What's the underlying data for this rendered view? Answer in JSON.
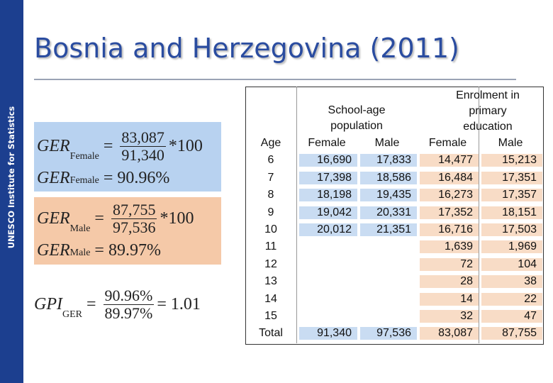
{
  "sidebar": "UNESCO Institute for Statistics",
  "title": "Bosnia and Herzegovina (2011)",
  "formulas": [
    {
      "lhs": "GER",
      "sub": "Female",
      "numerator": "83,087",
      "denominator": "91,340",
      "tail": "*100"
    },
    {
      "lhs": "GER",
      "sub": "Female",
      "result": "90.96%"
    },
    {
      "lhs": "GER",
      "sub": "Male",
      "numerator": "87,755",
      "denominator": "97,536",
      "tail": "*100"
    },
    {
      "lhs": "GER",
      "sub": "Male",
      "result": "89.97%"
    },
    {
      "lhs": "GPI",
      "sub": "GER",
      "numerator": "90.96%",
      "denominator": "89.97%",
      "tail": "= 1.01"
    }
  ],
  "table": {
    "age_header": "Age",
    "group_headers": [
      "School-age population",
      "Enrolment in primary education"
    ],
    "sub_headers": [
      "Female",
      "Male",
      "Female",
      "Male"
    ],
    "rows": [
      [
        "6",
        "16,690",
        "17,833",
        "14,477",
        "15,213"
      ],
      [
        "7",
        "17,398",
        "18,586",
        "16,484",
        "17,351"
      ],
      [
        "8",
        "18,198",
        "19,435",
        "16,273",
        "17,357"
      ],
      [
        "9",
        "19,042",
        "20,331",
        "17,352",
        "18,151"
      ],
      [
        "10",
        "20,012",
        "21,351",
        "16,716",
        "17,503"
      ],
      [
        "11",
        null,
        null,
        "1,639",
        "1,969"
      ],
      [
        "12",
        null,
        null,
        "72",
        "104"
      ],
      [
        "13",
        null,
        null,
        "28",
        "38"
      ],
      [
        "14",
        null,
        null,
        "14",
        "22"
      ],
      [
        "15",
        null,
        null,
        "32",
        "47"
      ],
      [
        "Total",
        "91,340",
        "97,536",
        "83,087",
        "87,755"
      ]
    ]
  }
}
